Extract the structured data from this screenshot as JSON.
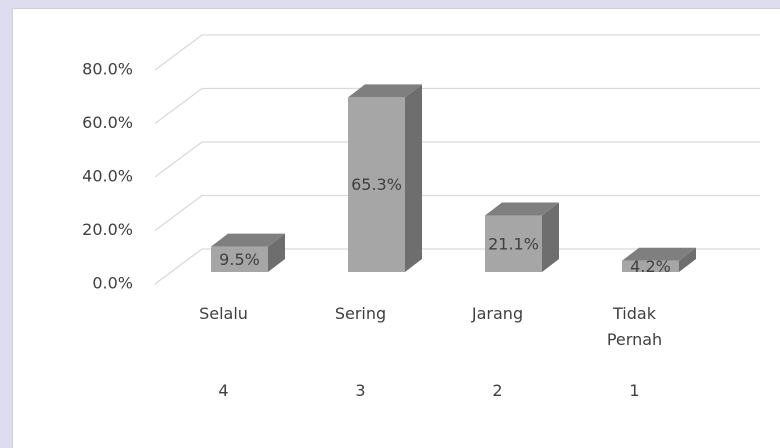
{
  "chart_data": {
    "type": "bar3d",
    "categories": [
      "Selalu",
      "Sering",
      "Jarang",
      "Tidak Pernah"
    ],
    "scores": [
      "4",
      "3",
      "2",
      "1"
    ],
    "values": [
      9.5,
      65.3,
      21.1,
      4.2
    ],
    "value_labels": [
      "9.5%",
      "65.3%",
      "21.1%",
      "4.2%"
    ],
    "color": "#a6a6a6",
    "ylim": [
      0,
      80
    ],
    "yticks": [
      {
        "value": 0,
        "label": "0.0%"
      },
      {
        "value": 20,
        "label": "20.0%"
      },
      {
        "value": 40,
        "label": "40.0%"
      },
      {
        "value": 60,
        "label": "60.0%"
      },
      {
        "value": 80,
        "label": "80.0%"
      }
    ],
    "grid": true
  }
}
